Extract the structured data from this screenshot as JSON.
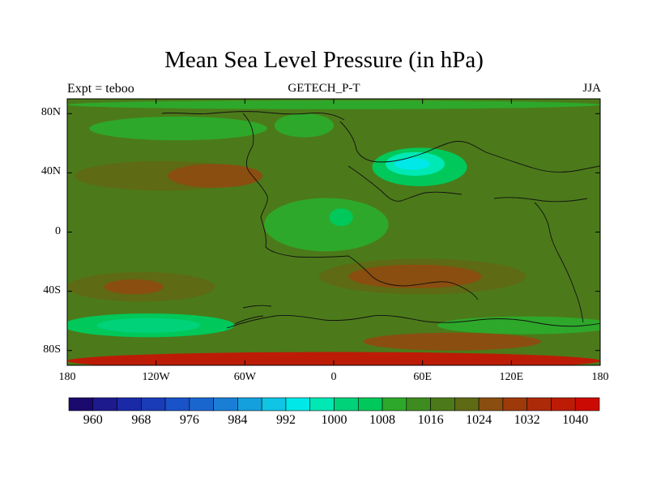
{
  "title": "Mean Sea Level Pressure (in hPa)",
  "subtitle_left": "Expt = teboo",
  "subtitle_center": "GETECH_P-T",
  "subtitle_right": "JJA",
  "map": {
    "projection": "cylindrical equidistant",
    "lon_range": [
      -180,
      180
    ],
    "lat_range": [
      -90,
      90
    ],
    "x_ticks": [
      {
        "value": -180,
        "label": "180"
      },
      {
        "value": -120,
        "label": "120W"
      },
      {
        "value": -60,
        "label": "60W"
      },
      {
        "value": 0,
        "label": "0"
      },
      {
        "value": 60,
        "label": "60E"
      },
      {
        "value": 120,
        "label": "120E"
      },
      {
        "value": 180,
        "label": "180"
      }
    ],
    "y_ticks": [
      {
        "value": 80,
        "label": "80N"
      },
      {
        "value": 40,
        "label": "40N"
      },
      {
        "value": 0,
        "label": "0"
      },
      {
        "value": -40,
        "label": "40S"
      },
      {
        "value": -80,
        "label": "80S"
      }
    ],
    "background_level": 1016
  },
  "colorbar": {
    "levels": [
      956,
      960,
      964,
      968,
      972,
      976,
      980,
      984,
      988,
      992,
      996,
      1000,
      1004,
      1008,
      1012,
      1016,
      1020,
      1024,
      1028,
      1032,
      1036,
      1040,
      1044
    ],
    "colors": [
      "#1a0a6e",
      "#1c1a8c",
      "#1a2aa6",
      "#1a3cb8",
      "#1a52c8",
      "#1a66cf",
      "#1a7ed6",
      "#14a0dc",
      "#10c4e4",
      "#00e8e8",
      "#00e8b4",
      "#00d27a",
      "#00c85a",
      "#2ea82a",
      "#3e8c20",
      "#4c7a1a",
      "#5e6a14",
      "#8a4e10",
      "#9e3a0a",
      "#ac2a08",
      "#bc1c06",
      "#cc0a04"
    ],
    "labels": [
      {
        "value": 960,
        "text": "960"
      },
      {
        "value": 968,
        "text": "968"
      },
      {
        "value": 976,
        "text": "976"
      },
      {
        "value": 984,
        "text": "984"
      },
      {
        "value": 992,
        "text": "992"
      },
      {
        "value": 1000,
        "text": "1000"
      },
      {
        "value": 1008,
        "text": "1008"
      },
      {
        "value": 1016,
        "text": "1016"
      },
      {
        "value": 1024,
        "text": "1024"
      },
      {
        "value": 1032,
        "text": "1032"
      },
      {
        "value": 1040,
        "text": "1040"
      }
    ]
  },
  "pressure_features": [
    {
      "name": "north-pacific-low",
      "lon": -105,
      "lat": 70,
      "lon_radius": 60,
      "lat_radius": 8,
      "level": 1008
    },
    {
      "name": "north-atlantic-low",
      "lon": -20,
      "lat": 72,
      "lon_radius": 20,
      "lat_radius": 8,
      "level": 1008
    },
    {
      "name": "arctic-ring",
      "lon": 0,
      "lat": 86,
      "lon_radius": 180,
      "lat_radius": 3,
      "level": 1008
    },
    {
      "name": "north-pacific-high",
      "lon": -115,
      "lat": 38,
      "lon_radius": 60,
      "lat_radius": 10,
      "level": 1020
    },
    {
      "name": "north-pacific-high-core",
      "lon": -80,
      "lat": 38,
      "lon_radius": 32,
      "lat_radius": 8,
      "level": 1024
    },
    {
      "name": "equatorial-trough",
      "lon": -5,
      "lat": 5,
      "lon_radius": 42,
      "lat_radius": 18,
      "level": 1008
    },
    {
      "name": "pangea-thermal-low",
      "lon": 5,
      "lat": 10,
      "lon_radius": 8,
      "lat_radius": 6,
      "level": 1004
    },
    {
      "name": "monsoon-low-outer",
      "lon": 58,
      "lat": 44,
      "lon_radius": 32,
      "lat_radius": 13,
      "level": 1004
    },
    {
      "name": "monsoon-low-mid",
      "lon": 55,
      "lat": 46,
      "lon_radius": 20,
      "lat_radius": 8,
      "level": 996
    },
    {
      "name": "monsoon-low-core",
      "lon": 53,
      "lat": 46,
      "lon_radius": 12,
      "lat_radius": 4,
      "level": 992
    },
    {
      "name": "south-pacific-high",
      "lon": -130,
      "lat": -37,
      "lon_radius": 50,
      "lat_radius": 10,
      "level": 1020
    },
    {
      "name": "south-pacific-high-core",
      "lon": -135,
      "lat": -37,
      "lon_radius": 20,
      "lat_radius": 5,
      "level": 1024
    },
    {
      "name": "tethys-south-high",
      "lon": 60,
      "lat": -30,
      "lon_radius": 70,
      "lat_radius": 12,
      "level": 1020
    },
    {
      "name": "tethys-south-high-core",
      "lon": 55,
      "lat": -30,
      "lon_radius": 45,
      "lat_radius": 8,
      "level": 1024
    },
    {
      "name": "southern-ocean-low",
      "lon": -125,
      "lat": -63,
      "lon_radius": 58,
      "lat_radius": 8,
      "level": 1004
    },
    {
      "name": "southern-ocean-low-core",
      "lon": -125,
      "lat": -63,
      "lon_radius": 35,
      "lat_radius": 5,
      "level": 1000
    },
    {
      "name": "southern-ocean-east-low",
      "lon": 130,
      "lat": -63,
      "lon_radius": 60,
      "lat_radius": 6,
      "level": 1008
    },
    {
      "name": "antarctic-high",
      "lon": 0,
      "lat": -87,
      "lon_radius": 180,
      "lat_radius": 6,
      "level": 1036
    },
    {
      "name": "antarctic-high-east",
      "lon": 80,
      "lat": -74,
      "lon_radius": 60,
      "lat_radius": 6,
      "level": 1024
    }
  ]
}
